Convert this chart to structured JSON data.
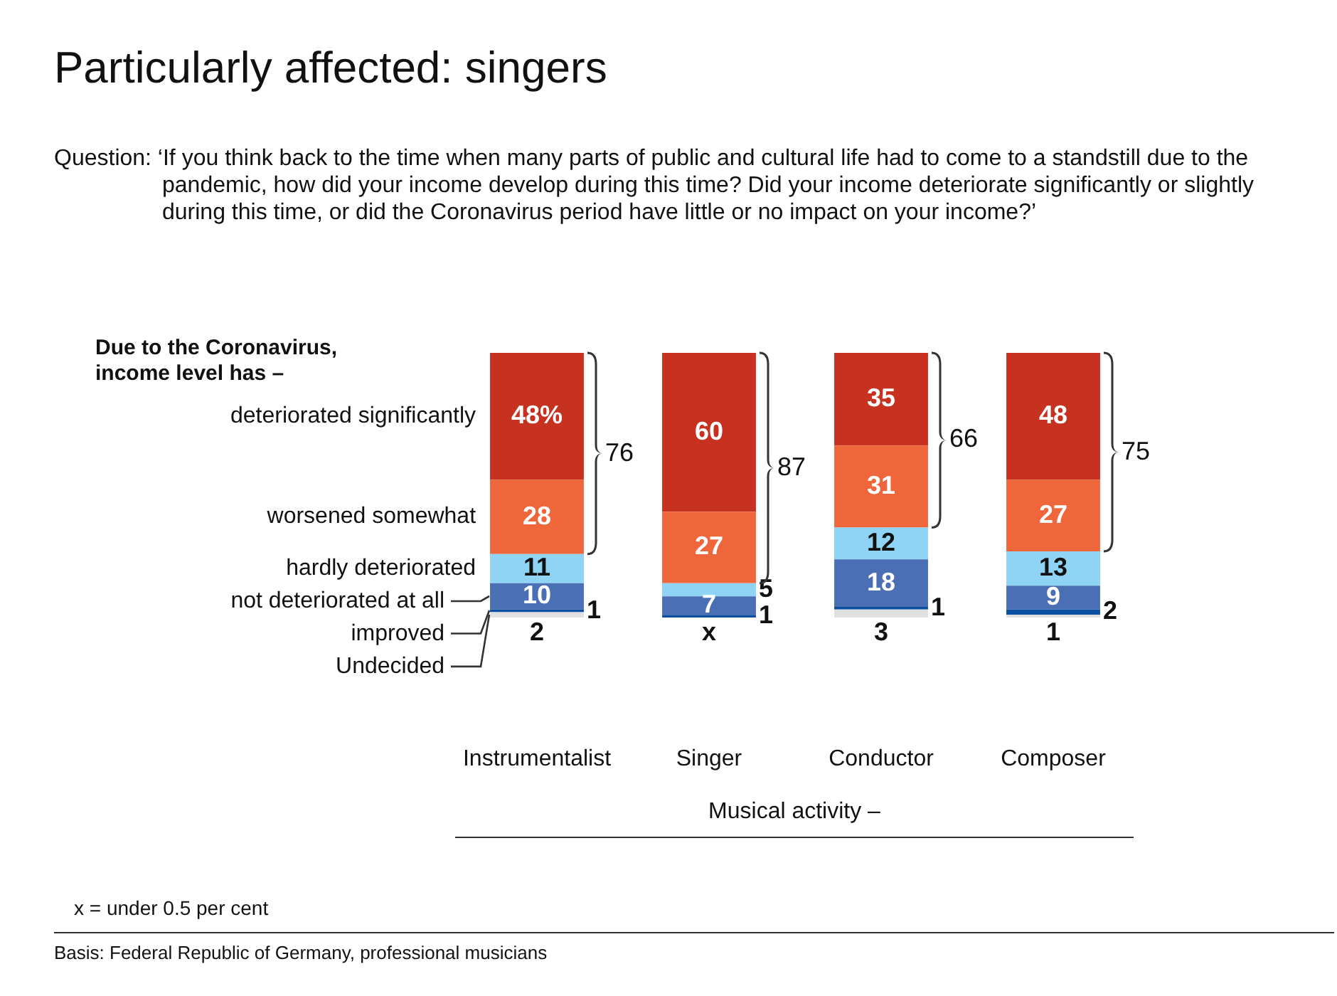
{
  "chart_data": {
    "type": "bar",
    "stacked": true,
    "title": "Particularly affected: singers",
    "subtitle": "Question: ‘If you think back to the time when many parts of public and cultural life had to come to a standstill due to the pandemic, how did your income develop during this time? Did your income deteriorate significantly or slightly during this time, or did the Coronavirus period have little or no impact on your income?’",
    "legend_title": "Due to the Coronavirus, income level has –",
    "xlabel": "Musical activity –",
    "categories": [
      "Instrumentalist",
      "Singer",
      "Conductor",
      "Composer"
    ],
    "ylim": [
      0,
      100
    ],
    "tick_labels": "x",
    "legend": false,
    "series": [
      {
        "name": "Undecided",
        "color": "#e0e0e0",
        "values": [
          2,
          0,
          3,
          1
        ],
        "value_labels": [
          "2",
          null,
          "3",
          "1"
        ]
      },
      {
        "name": "improved",
        "color": "#0b4fa0",
        "values": [
          1,
          1,
          1,
          2
        ],
        "value_labels": [
          "1",
          "1",
          "1",
          "2"
        ]
      },
      {
        "name": "not deteriorated at all",
        "color": "#4a6fb5",
        "values": [
          10,
          7,
          18,
          9
        ],
        "value_labels": [
          "10",
          "7",
          "18",
          "9"
        ]
      },
      {
        "name": "hardly deteriorated",
        "color": "#8fd4f4",
        "values": [
          11,
          5,
          12,
          13
        ],
        "value_labels": [
          "11",
          "5",
          "12",
          "13"
        ]
      },
      {
        "name": "worsened somewhat",
        "color": "#f0663b",
        "values": [
          28,
          27,
          31,
          27
        ],
        "value_labels": [
          "28",
          "27",
          "31",
          "27"
        ]
      },
      {
        "name": "deteriorated significantly",
        "color": "#c7311f",
        "values": [
          48,
          60,
          35,
          48
        ],
        "value_labels": [
          "48%",
          "60",
          "35",
          "48"
        ]
      }
    ],
    "annotations": [
      "76",
      "87",
      "66",
      "75",
      {
        "text": "x",
        "x": "Singer",
        "y": 0
      },
      "x = under 0.5 per cent",
      "Basis: Federal Republic of Germany, professional musicians"
    ]
  }
}
